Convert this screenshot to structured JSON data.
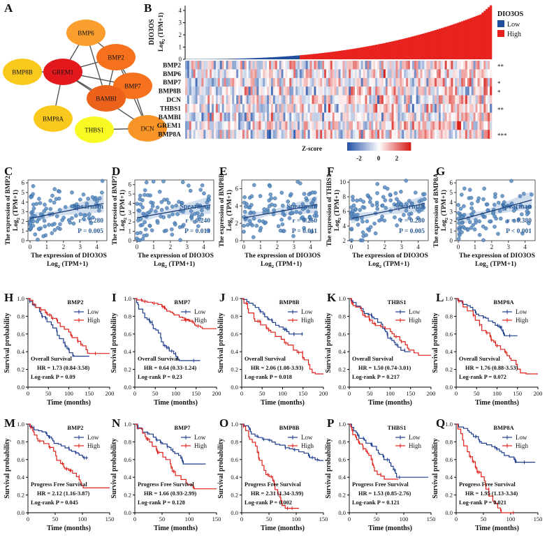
{
  "panel_letters": [
    "A",
    "B",
    "C",
    "D",
    "E",
    "F",
    "G",
    "H",
    "I",
    "J",
    "K",
    "L",
    "M",
    "N",
    "O",
    "P",
    "Q"
  ],
  "network": {
    "nodes": [
      {
        "name": "BMP6",
        "color": "#fa9f2d"
      },
      {
        "name": "BMP2",
        "color": "#f5711d"
      },
      {
        "name": "BMP8B",
        "color": "#f9c91e"
      },
      {
        "name": "GREM1",
        "color": "#e3181d"
      },
      {
        "name": "BMP7",
        "color": "#f5711d"
      },
      {
        "name": "BAMBI",
        "color": "#ec621a"
      },
      {
        "name": "BMP8A",
        "color": "#f9c91e"
      },
      {
        "name": "THBS1",
        "color": "#f8f823"
      },
      {
        "name": "DCN",
        "color": "#f99526"
      }
    ],
    "edges": [
      [
        "BMP6",
        "BMP2"
      ],
      [
        "BMP6",
        "GREM1"
      ],
      [
        "BMP6",
        "BAMBI"
      ],
      [
        "BMP2",
        "GREM1"
      ],
      [
        "BMP2",
        "BAMBI"
      ],
      [
        "BMP2",
        "BMP7"
      ],
      [
        "BMP2",
        "DCN"
      ],
      [
        "BMP8B",
        "GREM1"
      ],
      [
        "GREM1",
        "BMP8A"
      ],
      [
        "GREM1",
        "BAMBI"
      ],
      [
        "GREM1",
        "BMP7"
      ],
      [
        "GREM1",
        "DCN"
      ],
      [
        "BAMBI",
        "BMP7"
      ],
      [
        "BMP7",
        "DCN"
      ],
      [
        "THBS1",
        "DCN"
      ]
    ]
  },
  "heatmap": {
    "ylabel_main": "DIO3OS",
    "ylabel_sub": "Log2 (TPM+1)",
    "legend_title": "DIO3OS",
    "legend_low": "Low",
    "legend_high": "High",
    "color_low": "#1f4e9c",
    "color_high": "#e8231f",
    "yticks": [
      0,
      1,
      2,
      3,
      4
    ],
    "genes": [
      "BMP2",
      "BMP6",
      "BMP7",
      "BMP8B",
      "DCN",
      "THBS1",
      "BAMBI",
      "GREM1",
      "BMP8A"
    ],
    "significance": [
      "**",
      "",
      "*",
      "*",
      "",
      "**",
      "",
      "",
      "***"
    ],
    "zscore_label": "Z-score",
    "zscore_ticks": [
      "-2",
      "0",
      "2"
    ]
  },
  "scatter": {
    "xlabel1": "The expression of DIO3OS",
    "xlabel2": "Log2 (TPM+1)",
    "method": "Spearman",
    "panels": [
      {
        "gene": "BMP2",
        "ylabel1": "The expression of BMP2",
        "ylabel2": "Log2 (TPM+1)",
        "r": "r = 0.280",
        "p": "P = 0.005",
        "yticks": [
          0,
          1,
          2,
          3,
          4,
          5,
          6
        ],
        "ymax": 6.3
      },
      {
        "gene": "BMP7",
        "ylabel1": "The expression of BMP7",
        "ylabel2": "Log2 (TPM+1)",
        "r": "r = 0.240",
        "p": "P = 0.013",
        "yticks": [
          0,
          1,
          2,
          3,
          4,
          5,
          6
        ],
        "ymax": 6.5
      },
      {
        "gene": "BMP8B",
        "ylabel1": "The expression of BMP8B",
        "ylabel2": "Log2 (TPM+1)",
        "r": "r = 0.250",
        "p": "P = 0.011",
        "yticks": [
          0,
          2,
          4,
          6
        ],
        "ymax": 7
      },
      {
        "gene": "THBS1",
        "ylabel1": "The expression of THBS1",
        "ylabel2": "Log2 (TPM+1)",
        "r": "r = 0.280",
        "p": "P = 0.005",
        "yticks": [
          2,
          4,
          6,
          8,
          10
        ],
        "ymin": 2,
        "ymax": 10.3
      },
      {
        "gene": "BMP8A",
        "ylabel1": "The expression of BMP8A",
        "ylabel2": "Log2 (TPM+1)",
        "r": "r = 0.380",
        "p": "P < 0.001",
        "yticks": [
          0,
          1,
          2,
          3,
          4,
          5,
          6
        ],
        "ymax": 6.3
      }
    ],
    "xticks": [
      0,
      1,
      2,
      3,
      4
    ]
  },
  "survival": {
    "ylabel": "Survival probability",
    "xlabel": "Time (months)",
    "legend_low": "Low",
    "legend_high": "High",
    "color_low": "#1f3d8f",
    "color_high": "#e0201b",
    "yticks": [
      "0.0",
      "0.2",
      "0.4",
      "0.6",
      "0.8",
      "1.0"
    ],
    "os_xticks": [
      0,
      50,
      100,
      150,
      200
    ],
    "pfs_xticks": [
      0,
      50,
      100,
      150
    ],
    "os": [
      {
        "gene": "BMP2",
        "type": "Overall Survival",
        "hr": "HR = 1.73 (0.84-3.58)",
        "p": "Log-rank P = 0.09"
      },
      {
        "gene": "BMP7",
        "type": "Overall Survival",
        "hr": "HR = 0.64 (0.33-1.24)",
        "p": "Log-rank P = 0.23"
      },
      {
        "gene": "BMP8B",
        "type": "Overall Survival",
        "hr": "HR = 2.06 (1.08-3.93)",
        "p": "Log-rank P = 0.018"
      },
      {
        "gene": "THBS1",
        "type": "Overall Survival",
        "hr": "HR = 1.50 (0.74-3.01)",
        "p": "Log-rank P = 0.217"
      },
      {
        "gene": "BMP8A",
        "type": "Overall Survival",
        "hr": "HR = 1.76 (0.88-3.53)",
        "p": "Log-rank P = 0.072"
      }
    ],
    "pfs": [
      {
        "gene": "BMP2",
        "type": "Progress Free Survival",
        "hr": "HR = 2.12 (1.16-3.87)",
        "p": "Log-rank P = 0.045"
      },
      {
        "gene": "BMP7",
        "type": "Progress Free Survival",
        "hr": "HR = 1.66 (0.93-2.99)",
        "p": "Log-rank P = 0.128"
      },
      {
        "gene": "BMP8B",
        "type": "Progress Free Survival",
        "hr": "HR = 2.31 (1.34-3.99)",
        "p": "Log-rank P = 0.002"
      },
      {
        "gene": "THBS1",
        "type": "Progress Free Survival",
        "hr": "HR = 1.53 (0.85-2.76)",
        "p": "Log-rank P = 0.121"
      },
      {
        "gene": "BMP8A",
        "type": "Progress Free Survival",
        "hr": "HR = 1.95 (1.13-3.34)",
        "p": "Log-rank P = 0.021"
      }
    ]
  }
}
